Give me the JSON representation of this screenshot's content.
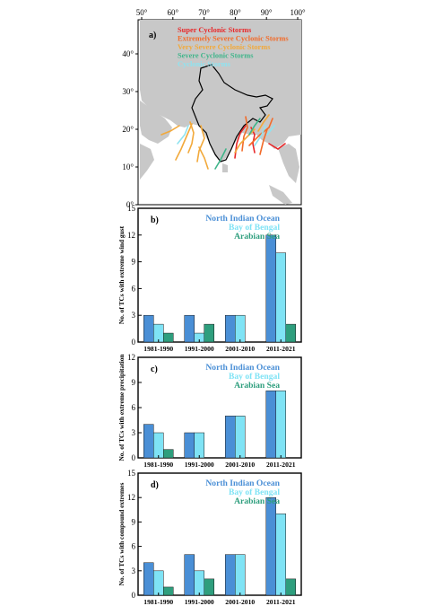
{
  "map": {
    "panel_label": "a)",
    "lon_ticks": [
      "50°",
      "60°",
      "70°",
      "80°",
      "90°",
      "100°"
    ],
    "lat_ticks": [
      "40°",
      "30°",
      "20°",
      "10°",
      "0°"
    ],
    "legend": [
      {
        "label": "Super Cyclonic Storms",
        "color": "#e8282a"
      },
      {
        "label": "Extremely Severe Cyclonic Storms",
        "color": "#f26b2a"
      },
      {
        "label": "Very Severe Cyclonic Storms",
        "color": "#f2a93b"
      },
      {
        "label": "Severe Cyclonic Storms",
        "color": "#3fb58a"
      },
      {
        "label": "Cyclonic Storms",
        "color": "#8fe3f0"
      }
    ]
  },
  "colors": {
    "north_indian_ocean": "#4a8fd6",
    "bay_of_bengal": "#7fe3f5",
    "arabian_sea": "#2e9e7d"
  },
  "chart_data": [
    {
      "type": "bar",
      "panel_label": "b)",
      "ylabel": "No. of TCs with extreme wind gust",
      "categories": [
        "1981-1990",
        "1991-2000",
        "2001-2010",
        "2011-2021"
      ],
      "ylim": [
        0,
        15
      ],
      "yticks": [
        0,
        3,
        6,
        9,
        12,
        15
      ],
      "series": [
        {
          "name": "North Indian Ocean",
          "values": [
            3,
            3,
            3,
            12
          ]
        },
        {
          "name": "Bay of Bengal",
          "values": [
            2,
            1,
            3,
            10
          ]
        },
        {
          "name": "Arabian Sea",
          "values": [
            1,
            2,
            0,
            2
          ]
        }
      ],
      "legend_position": "top-right"
    },
    {
      "type": "bar",
      "panel_label": "c)",
      "ylabel": "No. of TCs with extreme precipitation",
      "categories": [
        "1981-1990",
        "1991-2000",
        "2001-2010",
        "2011-2021"
      ],
      "ylim": [
        0,
        12
      ],
      "yticks": [
        0,
        3,
        6,
        9,
        12
      ],
      "series": [
        {
          "name": "North Indian Ocean",
          "values": [
            4,
            3,
            5,
            8
          ]
        },
        {
          "name": "Bay of Bengal",
          "values": [
            3,
            3,
            5,
            8
          ]
        },
        {
          "name": "Arabian Sea",
          "values": [
            1,
            0,
            0,
            0
          ]
        }
      ],
      "legend_position": "top-right"
    },
    {
      "type": "bar",
      "panel_label": "d)",
      "ylabel": "No. of TCs with compound extremes",
      "categories": [
        "1981-1990",
        "1991-2000",
        "2001-2010",
        "2011-2021"
      ],
      "ylim": [
        0,
        15
      ],
      "yticks": [
        0,
        3,
        6,
        9,
        12,
        15
      ],
      "series": [
        {
          "name": "North Indian Ocean",
          "values": [
            4,
            5,
            5,
            12
          ]
        },
        {
          "name": "Bay of Bengal",
          "values": [
            3,
            3,
            5,
            10
          ]
        },
        {
          "name": "Arabian Sea",
          "values": [
            1,
            2,
            0,
            2
          ]
        }
      ],
      "legend_position": "top-right"
    }
  ]
}
